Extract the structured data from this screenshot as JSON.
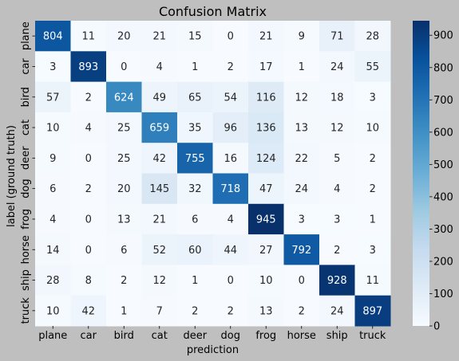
{
  "chart_data": {
    "type": "heatmap",
    "title": "Confusion Matrix",
    "xlabel": "prediction",
    "ylabel": "label (ground truth)",
    "x_categories": [
      "plane",
      "car",
      "bird",
      "cat",
      "deer",
      "dog",
      "frog",
      "horse",
      "ship",
      "truck"
    ],
    "y_categories": [
      "plane",
      "car",
      "bird",
      "cat",
      "deer",
      "dog",
      "frog",
      "horse",
      "ship",
      "truck"
    ],
    "values": [
      [
        804,
        11,
        20,
        21,
        15,
        0,
        21,
        9,
        71,
        28
      ],
      [
        3,
        893,
        0,
        4,
        1,
        2,
        17,
        1,
        24,
        55
      ],
      [
        57,
        2,
        624,
        49,
        65,
        54,
        116,
        12,
        18,
        3
      ],
      [
        10,
        4,
        25,
        659,
        35,
        96,
        136,
        13,
        12,
        10
      ],
      [
        9,
        0,
        25,
        42,
        755,
        16,
        124,
        22,
        5,
        2
      ],
      [
        6,
        2,
        20,
        145,
        32,
        718,
        47,
        24,
        4,
        2
      ],
      [
        4,
        0,
        13,
        21,
        6,
        4,
        945,
        3,
        3,
        1
      ],
      [
        14,
        0,
        6,
        52,
        60,
        44,
        27,
        792,
        2,
        3
      ],
      [
        28,
        8,
        2,
        12,
        1,
        0,
        10,
        0,
        928,
        11
      ],
      [
        10,
        42,
        1,
        7,
        2,
        2,
        13,
        2,
        24,
        897
      ]
    ],
    "colormap": "Blues",
    "vmin": 0,
    "vmax": 945,
    "colorbar_ticks": [
      0,
      100,
      200,
      300,
      400,
      500,
      600,
      700,
      800,
      900
    ],
    "grid": false
  },
  "colors": {
    "background": "#bfbfbf",
    "colormap_low": "#f7fbff",
    "colormap_high": "#08306b"
  }
}
